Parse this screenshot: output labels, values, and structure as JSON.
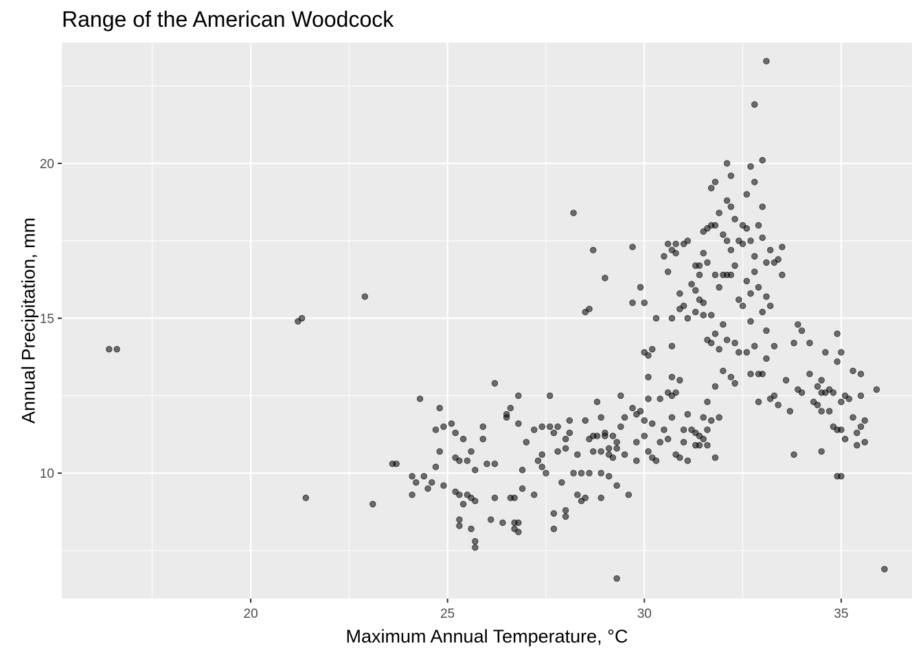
{
  "chart_data": {
    "type": "scatter",
    "title": "Range of the American Woodcock",
    "xlabel": "Maximum Annual Temperature, °C",
    "ylabel": "Annual Precipitation, mm",
    "xlim": [
      15.2,
      36.8
    ],
    "ylim": [
      5.95,
      23.9
    ],
    "x_ticks": [
      20,
      25,
      30,
      35
    ],
    "y_ticks": [
      10,
      15,
      20
    ],
    "grid": true,
    "colors": {
      "panel": "#EBEBEB",
      "grid": "#FFFFFF",
      "point": "#000000"
    },
    "point_alpha": 0.55,
    "points": [
      [
        16.4,
        14.0
      ],
      [
        16.6,
        14.0
      ],
      [
        21.2,
        14.9
      ],
      [
        21.3,
        15.0
      ],
      [
        21.4,
        9.2
      ],
      [
        22.9,
        15.7
      ],
      [
        23.1,
        9.0
      ],
      [
        23.6,
        10.3
      ],
      [
        23.7,
        10.3
      ],
      [
        24.1,
        9.9
      ],
      [
        24.1,
        9.3
      ],
      [
        24.2,
        9.7
      ],
      [
        24.3,
        12.4
      ],
      [
        24.4,
        9.9
      ],
      [
        24.5,
        9.5
      ],
      [
        24.6,
        9.7
      ],
      [
        24.7,
        11.4
      ],
      [
        24.7,
        10.2
      ],
      [
        24.8,
        12.1
      ],
      [
        24.8,
        10.7
      ],
      [
        24.9,
        11.5
      ],
      [
        24.9,
        9.6
      ],
      [
        25.1,
        11.6
      ],
      [
        25.2,
        11.3
      ],
      [
        25.2,
        10.5
      ],
      [
        25.2,
        9.4
      ],
      [
        25.3,
        10.4
      ],
      [
        25.3,
        9.3
      ],
      [
        25.3,
        8.5
      ],
      [
        25.3,
        8.3
      ],
      [
        25.4,
        11.1
      ],
      [
        25.4,
        9.0
      ],
      [
        25.5,
        10.4
      ],
      [
        25.5,
        9.3
      ],
      [
        25.6,
        10.7
      ],
      [
        25.6,
        8.2
      ],
      [
        25.6,
        9.2
      ],
      [
        25.7,
        10.1
      ],
      [
        25.7,
        9.1
      ],
      [
        25.7,
        7.8
      ],
      [
        25.7,
        7.6
      ],
      [
        25.9,
        11.5
      ],
      [
        25.9,
        11.1
      ],
      [
        26.0,
        10.3
      ],
      [
        26.1,
        8.5
      ],
      [
        26.2,
        12.9
      ],
      [
        26.2,
        10.3
      ],
      [
        26.2,
        9.2
      ],
      [
        26.4,
        8.4
      ],
      [
        26.5,
        11.9
      ],
      [
        26.5,
        11.8
      ],
      [
        26.6,
        12.1
      ],
      [
        26.6,
        9.2
      ],
      [
        26.7,
        9.2
      ],
      [
        26.7,
        8.2
      ],
      [
        26.7,
        8.4
      ],
      [
        26.8,
        11.6
      ],
      [
        26.8,
        12.5
      ],
      [
        26.8,
        8.1
      ],
      [
        26.8,
        8.4
      ],
      [
        26.9,
        10.1
      ],
      [
        26.9,
        9.5
      ],
      [
        27.0,
        11.0
      ],
      [
        27.2,
        11.4
      ],
      [
        27.2,
        9.3
      ],
      [
        27.3,
        10.4
      ],
      [
        27.4,
        10.2
      ],
      [
        27.4,
        11.5
      ],
      [
        27.4,
        10.6
      ],
      [
        27.5,
        10.0
      ],
      [
        27.6,
        12.5
      ],
      [
        27.6,
        11.5
      ],
      [
        27.7,
        11.3
      ],
      [
        27.7,
        8.7
      ],
      [
        27.7,
        8.2
      ],
      [
        27.8,
        10.7
      ],
      [
        27.8,
        11.5
      ],
      [
        27.9,
        9.7
      ],
      [
        28.0,
        11.1
      ],
      [
        28.0,
        10.8
      ],
      [
        28.0,
        8.8
      ],
      [
        28.0,
        8.6
      ],
      [
        28.1,
        11.7
      ],
      [
        28.1,
        11.3
      ],
      [
        28.2,
        18.4
      ],
      [
        28.2,
        10.0
      ],
      [
        28.3,
        10.6
      ],
      [
        28.3,
        9.3
      ],
      [
        28.4,
        10.0
      ],
      [
        28.4,
        9.1
      ],
      [
        28.5,
        15.2
      ],
      [
        28.5,
        11.7
      ],
      [
        28.5,
        9.2
      ],
      [
        28.6,
        15.3
      ],
      [
        28.6,
        11.1
      ],
      [
        28.6,
        10.0
      ],
      [
        28.7,
        17.2
      ],
      [
        28.7,
        11.2
      ],
      [
        28.7,
        10.7
      ],
      [
        28.8,
        12.3
      ],
      [
        28.8,
        11.2
      ],
      [
        28.9,
        11.8
      ],
      [
        28.9,
        10.7
      ],
      [
        28.9,
        9.2
      ],
      [
        28.9,
        10.0
      ],
      [
        29.0,
        16.3
      ],
      [
        29.0,
        11.3
      ],
      [
        29.0,
        11.2
      ],
      [
        29.1,
        10.6
      ],
      [
        29.1,
        9.9
      ],
      [
        29.1,
        10.8
      ],
      [
        29.2,
        11.2
      ],
      [
        29.2,
        10.5
      ],
      [
        29.3,
        6.6
      ],
      [
        29.3,
        10.8
      ],
      [
        29.3,
        11.0
      ],
      [
        29.3,
        9.6
      ],
      [
        29.4,
        11.5
      ],
      [
        29.4,
        12.5
      ],
      [
        29.5,
        11.8
      ],
      [
        29.5,
        10.6
      ],
      [
        29.6,
        9.3
      ],
      [
        29.7,
        17.3
      ],
      [
        29.7,
        15.5
      ],
      [
        29.7,
        12.1
      ],
      [
        29.8,
        11.0
      ],
      [
        29.8,
        11.9
      ],
      [
        29.8,
        10.4
      ],
      [
        29.9,
        16.0
      ],
      [
        29.9,
        12.0
      ],
      [
        30.0,
        15.5
      ],
      [
        30.0,
        13.9
      ],
      [
        30.0,
        11.7
      ],
      [
        30.0,
        11.2
      ],
      [
        30.1,
        13.8
      ],
      [
        30.1,
        13.1
      ],
      [
        30.1,
        10.7
      ],
      [
        30.1,
        12.4
      ],
      [
        30.2,
        14.0
      ],
      [
        30.2,
        11.6
      ],
      [
        30.2,
        10.5
      ],
      [
        30.3,
        15.0
      ],
      [
        30.3,
        10.4
      ],
      [
        30.4,
        12.4
      ],
      [
        30.4,
        11.0
      ],
      [
        30.5,
        17.0
      ],
      [
        30.5,
        11.4
      ],
      [
        30.6,
        17.4
      ],
      [
        30.6,
        16.5
      ],
      [
        30.6,
        12.6
      ],
      [
        30.6,
        11.1
      ],
      [
        30.7,
        17.2
      ],
      [
        30.7,
        15.0
      ],
      [
        30.7,
        14.1
      ],
      [
        30.7,
        13.1
      ],
      [
        30.7,
        12.5
      ],
      [
        30.7,
        11.8
      ],
      [
        30.8,
        17.4
      ],
      [
        30.8,
        17.1
      ],
      [
        30.8,
        12.6
      ],
      [
        30.8,
        10.6
      ],
      [
        30.9,
        15.8
      ],
      [
        30.9,
        15.3
      ],
      [
        30.9,
        13.0
      ],
      [
        30.9,
        10.5
      ],
      [
        31.0,
        17.4
      ],
      [
        31.0,
        15.4
      ],
      [
        31.0,
        11.4
      ],
      [
        31.0,
        11.0
      ],
      [
        31.1,
        17.5
      ],
      [
        31.1,
        15.0
      ],
      [
        31.1,
        11.9
      ],
      [
        31.1,
        10.4
      ],
      [
        31.2,
        16.1
      ],
      [
        31.2,
        11.4
      ],
      [
        31.3,
        16.7
      ],
      [
        31.3,
        15.9
      ],
      [
        31.3,
        15.2
      ],
      [
        31.3,
        11.3
      ],
      [
        31.3,
        10.9
      ],
      [
        31.4,
        16.7
      ],
      [
        31.4,
        16.4
      ],
      [
        31.4,
        15.6
      ],
      [
        31.4,
        11.2
      ],
      [
        31.4,
        10.9
      ],
      [
        31.5,
        17.8
      ],
      [
        31.5,
        17.1
      ],
      [
        31.5,
        15.5
      ],
      [
        31.5,
        15.1
      ],
      [
        31.5,
        11.8
      ],
      [
        31.5,
        11.1
      ],
      [
        31.6,
        17.9
      ],
      [
        31.6,
        16.8
      ],
      [
        31.6,
        14.3
      ],
      [
        31.6,
        12.3
      ],
      [
        31.6,
        11.4
      ],
      [
        31.6,
        10.9
      ],
      [
        31.7,
        19.2
      ],
      [
        31.7,
        18.0
      ],
      [
        31.7,
        15.1
      ],
      [
        31.7,
        14.2
      ],
      [
        31.7,
        11.7
      ],
      [
        31.8,
        19.4
      ],
      [
        31.8,
        18.0
      ],
      [
        31.8,
        16.4
      ],
      [
        31.8,
        14.5
      ],
      [
        31.8,
        12.8
      ],
      [
        31.8,
        10.5
      ],
      [
        31.9,
        18.4
      ],
      [
        31.9,
        16.0
      ],
      [
        31.9,
        14.0
      ],
      [
        31.9,
        11.8
      ],
      [
        32.0,
        17.7
      ],
      [
        32.0,
        16.4
      ],
      [
        32.0,
        14.8
      ],
      [
        32.0,
        13.3
      ],
      [
        32.1,
        20.0
      ],
      [
        32.1,
        18.8
      ],
      [
        32.1,
        17.5
      ],
      [
        32.1,
        16.4
      ],
      [
        32.1,
        14.3
      ],
      [
        32.2,
        19.6
      ],
      [
        32.2,
        18.6
      ],
      [
        32.2,
        17.2
      ],
      [
        32.2,
        16.4
      ],
      [
        32.2,
        13.1
      ],
      [
        32.3,
        18.2
      ],
      [
        32.3,
        16.7
      ],
      [
        32.3,
        14.2
      ],
      [
        32.3,
        12.9
      ],
      [
        32.4,
        17.5
      ],
      [
        32.4,
        15.6
      ],
      [
        32.4,
        13.9
      ],
      [
        32.5,
        18.0
      ],
      [
        32.5,
        17.4
      ],
      [
        32.5,
        15.4
      ],
      [
        32.6,
        19.0
      ],
      [
        32.6,
        17.9
      ],
      [
        32.6,
        16.2
      ],
      [
        32.6,
        13.9
      ],
      [
        32.7,
        19.9
      ],
      [
        32.7,
        17.5
      ],
      [
        32.7,
        15.8
      ],
      [
        32.7,
        14.9
      ],
      [
        32.7,
        13.2
      ],
      [
        32.8,
        21.9
      ],
      [
        32.8,
        19.4
      ],
      [
        32.8,
        17.0
      ],
      [
        32.8,
        16.5
      ],
      [
        32.8,
        14.1
      ],
      [
        32.9,
        18.0
      ],
      [
        32.9,
        16.0
      ],
      [
        32.9,
        13.2
      ],
      [
        32.9,
        12.3
      ],
      [
        33.0,
        20.1
      ],
      [
        33.0,
        18.6
      ],
      [
        33.0,
        17.6
      ],
      [
        33.0,
        15.2
      ],
      [
        33.0,
        13.2
      ],
      [
        33.1,
        23.3
      ],
      [
        33.1,
        16.8
      ],
      [
        33.1,
        15.7
      ],
      [
        33.1,
        14.6
      ],
      [
        33.1,
        13.7
      ],
      [
        33.2,
        17.2
      ],
      [
        33.2,
        15.4
      ],
      [
        33.2,
        12.4
      ],
      [
        33.3,
        16.8
      ],
      [
        33.3,
        14.1
      ],
      [
        33.3,
        12.5
      ],
      [
        33.4,
        16.9
      ],
      [
        33.4,
        12.2
      ],
      [
        33.5,
        17.3
      ],
      [
        33.5,
        16.4
      ],
      [
        33.6,
        13.0
      ],
      [
        33.7,
        12.0
      ],
      [
        33.8,
        14.2
      ],
      [
        33.8,
        10.6
      ],
      [
        33.9,
        14.8
      ],
      [
        33.9,
        12.7
      ],
      [
        34.0,
        14.6
      ],
      [
        34.0,
        12.6
      ],
      [
        34.2,
        14.2
      ],
      [
        34.2,
        13.2
      ],
      [
        34.3,
        12.3
      ],
      [
        34.4,
        12.8
      ],
      [
        34.4,
        12.2
      ],
      [
        34.5,
        13.0
      ],
      [
        34.5,
        12.6
      ],
      [
        34.5,
        10.7
      ],
      [
        34.5,
        12.0
      ],
      [
        34.6,
        13.9
      ],
      [
        34.6,
        12.6
      ],
      [
        34.7,
        12.7
      ],
      [
        34.7,
        12.0
      ],
      [
        34.8,
        11.5
      ],
      [
        34.8,
        12.6
      ],
      [
        34.9,
        14.5
      ],
      [
        34.9,
        13.6
      ],
      [
        34.9,
        11.4
      ],
      [
        34.9,
        9.9
      ],
      [
        35.0,
        13.9
      ],
      [
        35.0,
        12.3
      ],
      [
        35.0,
        11.4
      ],
      [
        35.0,
        9.9
      ],
      [
        35.1,
        12.5
      ],
      [
        35.1,
        11.1
      ],
      [
        35.2,
        12.4
      ],
      [
        35.3,
        13.3
      ],
      [
        35.3,
        11.8
      ],
      [
        35.4,
        11.3
      ],
      [
        35.4,
        10.9
      ],
      [
        35.5,
        13.2
      ],
      [
        35.5,
        12.5
      ],
      [
        35.5,
        11.5
      ],
      [
        35.6,
        11.7
      ],
      [
        35.6,
        11.0
      ],
      [
        35.9,
        12.7
      ],
      [
        36.1,
        6.9
      ]
    ]
  }
}
